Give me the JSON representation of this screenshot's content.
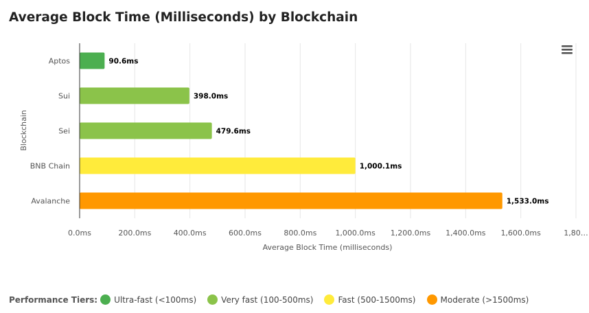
{
  "chart_data": {
    "type": "bar",
    "orientation": "horizontal",
    "title": "Average Block Time (Milliseconds) by Blockchain",
    "xlabel": "Average Block Time (milliseconds)",
    "ylabel": "Blockchain",
    "xlim": [
      0,
      1800
    ],
    "x_ticks": [
      "0.0ms",
      "200.0ms",
      "400.0ms",
      "600.0ms",
      "800.0ms",
      "1,000.0ms",
      "1,200.0ms",
      "1,400.0ms",
      "1,600.0ms",
      "1,80…"
    ],
    "categories": [
      "Aptos",
      "Sui",
      "Sei",
      "BNB Chain",
      "Avalanche"
    ],
    "values": [
      90.6,
      398.0,
      479.6,
      1000.1,
      1533.0
    ],
    "value_labels": [
      "90.6ms",
      "398.0ms",
      "479.6ms",
      "1,000.1ms",
      "1,533.0ms"
    ],
    "bar_colors": [
      "#4caf50",
      "#8bc34a",
      "#8bc34a",
      "#ffeb3b",
      "#ff9800"
    ],
    "grid": true
  },
  "legend": {
    "title": "Performance Tiers:",
    "items": [
      {
        "label": "Ultra-fast (<100ms)",
        "color": "#4caf50"
      },
      {
        "label": "Very fast (100-500ms)",
        "color": "#8bc34a"
      },
      {
        "label": "Fast (500-1500ms)",
        "color": "#ffeb3b"
      },
      {
        "label": "Moderate (>1500ms)",
        "color": "#ff9800"
      }
    ]
  },
  "menu": {
    "icon": "hamburger-menu-icon"
  }
}
